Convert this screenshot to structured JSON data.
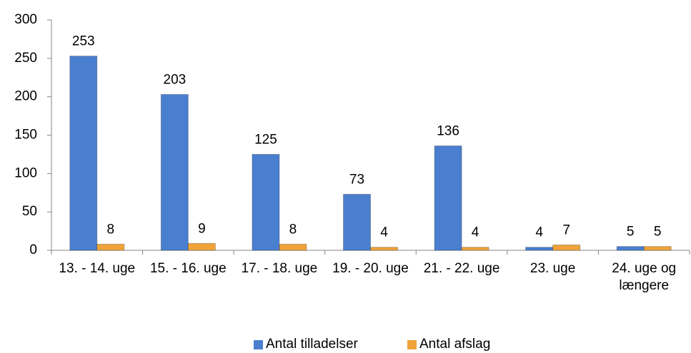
{
  "chart_data": {
    "type": "bar",
    "categories": [
      "13. - 14. uge",
      "15. - 16. uge",
      "17. - 18. uge",
      "19. - 20. uge",
      "21. - 22. uge",
      "23. uge",
      "24. uge og længere"
    ],
    "series": [
      {
        "name": "Antal tilladelser",
        "color": "#4a7fd0",
        "values": [
          253,
          203,
          125,
          73,
          136,
          4,
          5
        ]
      },
      {
        "name": "Antal afslag",
        "color": "#f0a33a",
        "values": [
          8,
          9,
          8,
          4,
          4,
          7,
          5
        ]
      }
    ],
    "ylim": [
      0,
      300
    ],
    "yticks": [
      0,
      50,
      100,
      150,
      200,
      250,
      300
    ],
    "legend": "bottom"
  }
}
